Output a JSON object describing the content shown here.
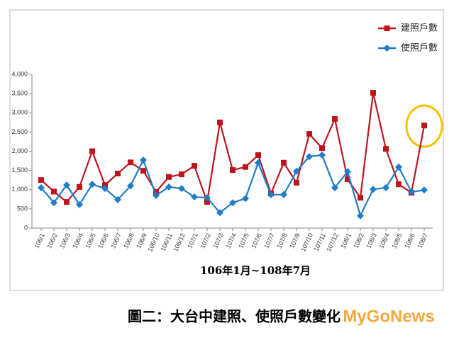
{
  "chart_data": {
    "type": "line",
    "x_label": "106年1月~108年7月",
    "caption": "圖二：大台中建照、使照戶數變化",
    "watermark": "MyGoNews",
    "categories": [
      "106/1",
      "106/2",
      "106/3",
      "106/4",
      "106/5",
      "106/6",
      "106/7",
      "106/8",
      "106/9",
      "106/10",
      "106/11",
      "106/12",
      "107/1",
      "107/2",
      "107/3",
      "107/4",
      "107/5",
      "107/6",
      "107/7",
      "107/8",
      "107/9",
      "107/10",
      "107/11",
      "107/12",
      "108/1",
      "108/2",
      "108/3",
      "108/4",
      "108/5",
      "108/6",
      "108/7"
    ],
    "series": [
      {
        "name": "建照戶數",
        "color": "#c0141c",
        "marker": "square",
        "values": [
          1250,
          950,
          680,
          1070,
          2000,
          1120,
          1420,
          1710,
          1490,
          940,
          1330,
          1400,
          1620,
          680,
          2750,
          1510,
          1590,
          1900,
          900,
          1700,
          1180,
          2450,
          2080,
          2840,
          1270,
          790,
          3520,
          2060,
          1140,
          920,
          2670
        ]
      },
      {
        "name": "使照戶數",
        "color": "#1f7cc8",
        "marker": "diamond",
        "values": [
          1050,
          660,
          1120,
          610,
          1140,
          1030,
          740,
          1100,
          1770,
          850,
          1070,
          1030,
          810,
          790,
          400,
          660,
          770,
          1700,
          870,
          870,
          1480,
          1860,
          1900,
          1050,
          1470,
          320,
          1010,
          1050,
          1590,
          940,
          990
        ]
      }
    ],
    "ylim": [
      0,
      4000
    ],
    "yticks": [
      0,
      500,
      {
        "value": 1000,
        "label": "1,000"
      },
      {
        "value": 1500,
        "label": "1,500"
      },
      {
        "value": 2000,
        "label": "2,000"
      },
      {
        "value": 2500,
        "label": "2,500"
      },
      {
        "value": 3000,
        "label": "3,000"
      },
      {
        "value": 3500,
        "label": "3,500"
      },
      {
        "value": 4000,
        "label": "4,000"
      }
    ],
    "legend": "top-right"
  }
}
